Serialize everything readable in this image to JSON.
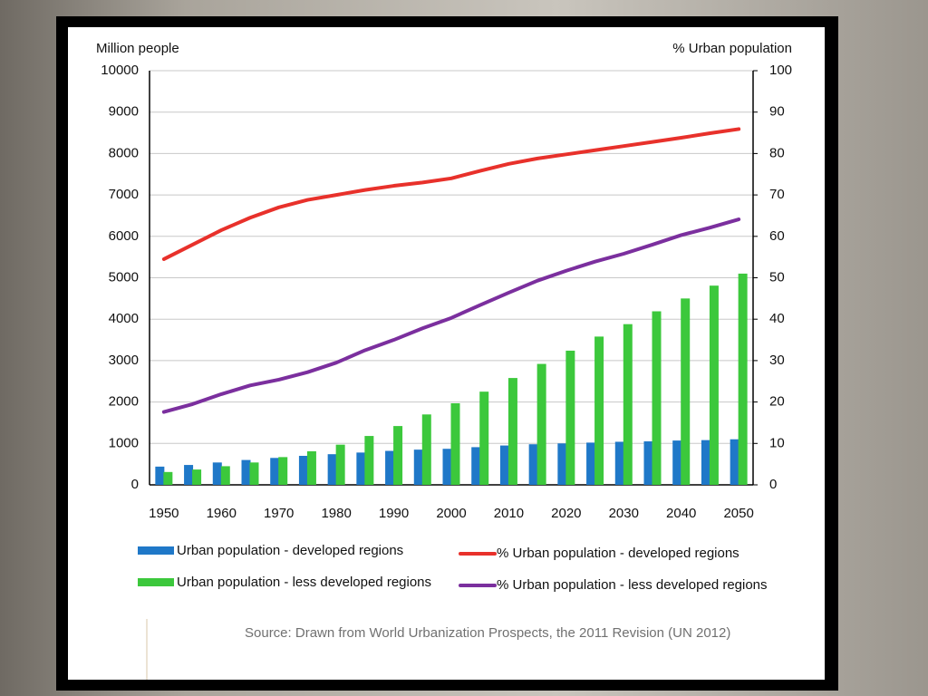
{
  "chart_data": {
    "type": "bar",
    "y_axis_label": "Million people",
    "y2_axis_label": "% Urban population",
    "categories": [
      "1950",
      null,
      "1960",
      null,
      "1970",
      null,
      "1980",
      null,
      "1990",
      null,
      "2000",
      null,
      "2010",
      null,
      "2020",
      null,
      "2030",
      null,
      "2040",
      null,
      "2050"
    ],
    "series": [
      {
        "name": "Urban population - developed regions",
        "type": "bar",
        "color": "#1f78c8",
        "values": [
          440,
          480,
          540,
          600,
          650,
          700,
          740,
          780,
          820,
          850,
          870,
          910,
          950,
          980,
          1000,
          1020,
          1040,
          1050,
          1070,
          1080,
          1100
        ]
      },
      {
        "name": "Urban population - less developed regions",
        "type": "bar",
        "color": "#3cc83c",
        "values": [
          310,
          370,
          450,
          540,
          670,
          810,
          970,
          1180,
          1420,
          1700,
          1970,
          2250,
          2580,
          2920,
          3240,
          3580,
          3880,
          4190,
          4500,
          4810,
          5100
        ]
      },
      {
        "name": "% Urban population - developed regions",
        "type": "line",
        "axis": "y2",
        "color": "#e8312b",
        "values": [
          54.5,
          58,
          61.5,
          64.5,
          67,
          68.8,
          70,
          71.2,
          72.2,
          73,
          74,
          75.8,
          77.5,
          78.8,
          79.8,
          80.8,
          81.8,
          82.8,
          83.8,
          84.9,
          85.9
        ]
      },
      {
        "name": "% Urban population - less developed regions",
        "type": "line",
        "axis": "y2",
        "color": "#7b2f9e",
        "values": [
          17.6,
          19.5,
          21.9,
          24,
          25.4,
          27.2,
          29.5,
          32.5,
          35,
          37.8,
          40.3,
          43.4,
          46.4,
          49.3,
          51.7,
          53.9,
          55.8,
          58,
          60.3,
          62.1,
          64.1
        ]
      }
    ],
    "ylim": [
      0,
      10000
    ],
    "yticks": [
      0,
      1000,
      2000,
      3000,
      4000,
      5000,
      6000,
      7000,
      8000,
      9000,
      10000
    ],
    "y2lim": [
      0,
      100
    ],
    "y2ticks": [
      0,
      10,
      20,
      30,
      40,
      50,
      60,
      70,
      80,
      90,
      100
    ],
    "grid": true,
    "source": "Source: Drawn from World Urbanization Prospects, the 2011 Revision (UN 2012)"
  }
}
